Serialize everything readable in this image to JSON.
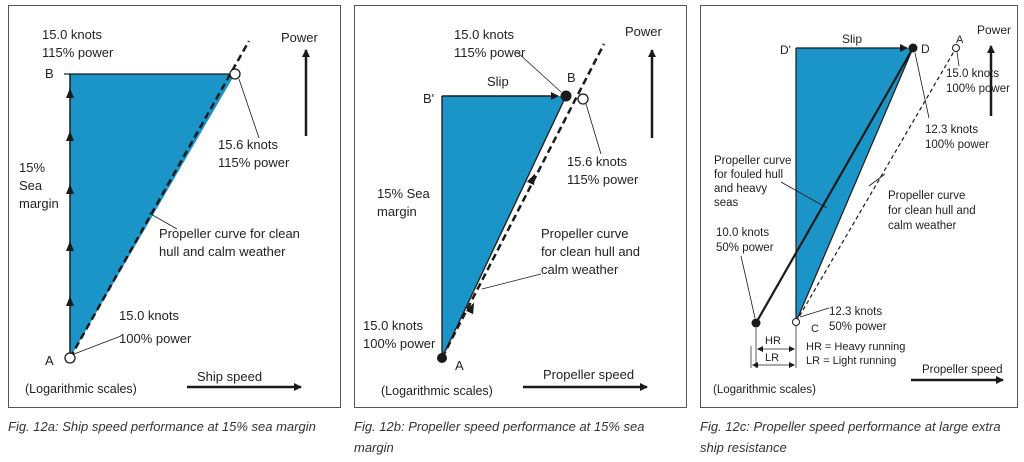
{
  "fig_a": {
    "caption": "Fig. 12a: Ship speed performance at 15% sea margin",
    "power_label": "Power",
    "point_b": {
      "label": "B",
      "note_line1": "15.0 knots",
      "note_line2": "115% power"
    },
    "point_top": {
      "note_line1": "15.6 knots",
      "note_line2": "115% power"
    },
    "sea_margin": [
      "15%",
      "Sea",
      "margin"
    ],
    "curve_label": [
      "Propeller curve for clean",
      "hull and calm weather"
    ],
    "point_a": {
      "label": "A",
      "note_line1": "15.0 knots",
      "note_line2": "100% power"
    },
    "scale_note": "(Logarithmic scales)",
    "x_axis_label": "Ship speed"
  },
  "fig_b": {
    "caption": "Fig. 12b: Propeller speed performance at 15% sea margin",
    "power_label": "Power",
    "point_b": {
      "label": "B",
      "note_line1": "15.0 knots",
      "note_line2": "115% power"
    },
    "point_b_prime": "B'",
    "slip_label": "Slip",
    "point_top": {
      "note_line1": "15.6 knots",
      "note_line2": "115% power"
    },
    "sea_margin": [
      "15% Sea",
      "margin"
    ],
    "curve_label": [
      "Propeller curve",
      "for clean hull and",
      "calm weather"
    ],
    "point_a": {
      "label": "A",
      "note_line1": "15.0 knots",
      "note_line2": "100% power"
    },
    "scale_note": "(Logarithmic scales)",
    "x_axis_label": "Propeller speed"
  },
  "fig_c": {
    "caption": "Fig. 12c: Propeller speed performance at large extra ship resistance",
    "power_label": "Power",
    "slip_label": "Slip",
    "point_d_prime": "D'",
    "point_d": "D",
    "point_a": {
      "label": "A",
      "note_line1": "15.0 knots",
      "note_line2": "100% power"
    },
    "point_d_note": {
      "note_line1": "12.3 knots",
      "note_line2": "100% power"
    },
    "fouled_curve_label": [
      "Propeller curve",
      "for fouled hull",
      "and heavy",
      "seas"
    ],
    "clean_curve_label": [
      "Propeller curve",
      "for clean hull and",
      "calm weather"
    ],
    "low_point": {
      "note_line1": "10.0 knots",
      "note_line2": "50% power"
    },
    "point_c": {
      "label": "C",
      "note_line1": "12.3 knots",
      "note_line2": "50% power"
    },
    "hr_label": "HR",
    "lr_label": "LR",
    "hr_legend": "HR = Heavy running",
    "lr_legend": "LR = Light running",
    "scale_note": "(Logarithmic scales)",
    "x_axis_label": "Propeller speed"
  },
  "colors": {
    "fill": "#1b95c8",
    "line": "#1a1a1a"
  }
}
